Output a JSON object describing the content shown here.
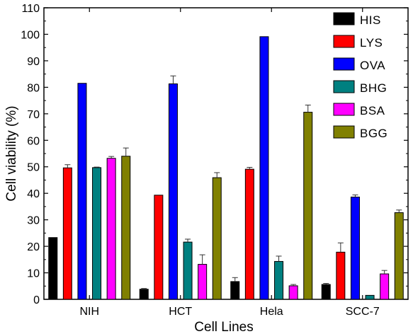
{
  "chart_data": {
    "type": "bar",
    "xlabel": "Cell Lines",
    "ylabel": "Cell viability (%)",
    "ylim": [
      0,
      110
    ],
    "yticks": [
      0,
      10,
      20,
      30,
      40,
      50,
      60,
      70,
      80,
      90,
      100,
      110
    ],
    "categories": [
      "NIH",
      "HCT",
      "Hela",
      "SCC-7"
    ],
    "legend_position": "top-right",
    "grid": false,
    "series": [
      {
        "name": "HIS",
        "color": "#000000",
        "values": [
          23.3,
          3.8,
          6.7,
          5.6
        ],
        "errors": [
          0,
          0.3,
          1.5,
          0.4
        ]
      },
      {
        "name": "LYS",
        "color": "#ff0000",
        "values": [
          49.6,
          39.3,
          49.1,
          17.8
        ],
        "errors": [
          1.2,
          0,
          0.7,
          3.5
        ]
      },
      {
        "name": "OVA",
        "color": "#0000ff",
        "values": [
          81.5,
          81.3,
          99.1,
          38.6
        ],
        "errors": [
          0,
          3,
          0,
          0.8
        ]
      },
      {
        "name": "BHG",
        "color": "#008080",
        "values": [
          49.7,
          21.6,
          14.3,
          1.5
        ],
        "errors": [
          0.2,
          1.1,
          2,
          0
        ]
      },
      {
        "name": "BSA",
        "color": "#ff00ff",
        "values": [
          53.2,
          13.2,
          5.1,
          9.6
        ],
        "errors": [
          0.7,
          3.6,
          0.5,
          1.3
        ]
      },
      {
        "name": "BGG",
        "color": "#808000",
        "values": [
          54,
          45.9,
          70.6,
          32.7
        ],
        "errors": [
          3.1,
          1.9,
          2.7,
          1
        ]
      }
    ]
  }
}
